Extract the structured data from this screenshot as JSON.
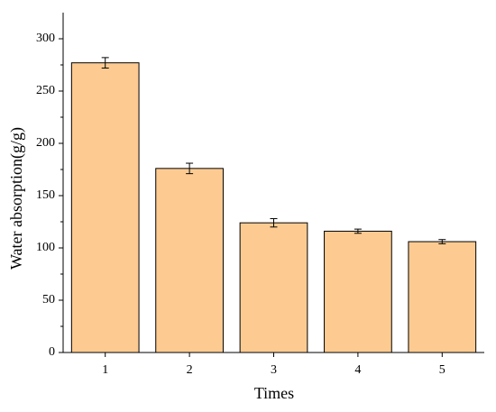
{
  "chart_data": {
    "type": "bar",
    "categories": [
      "1",
      "2",
      "3",
      "4",
      "5"
    ],
    "values": [
      277,
      176,
      124,
      116,
      106
    ],
    "errors": [
      5,
      5,
      4,
      2,
      2
    ],
    "color": "#fdcb91",
    "x_label": "Times",
    "y_label": "Water absorption(g/g)",
    "ylim": [
      0,
      325
    ],
    "yticks": [
      0,
      50,
      100,
      150,
      200,
      250,
      300
    ],
    "minor_yticks": [
      25,
      75,
      125,
      175,
      225,
      275
    ],
    "grid": false
  }
}
